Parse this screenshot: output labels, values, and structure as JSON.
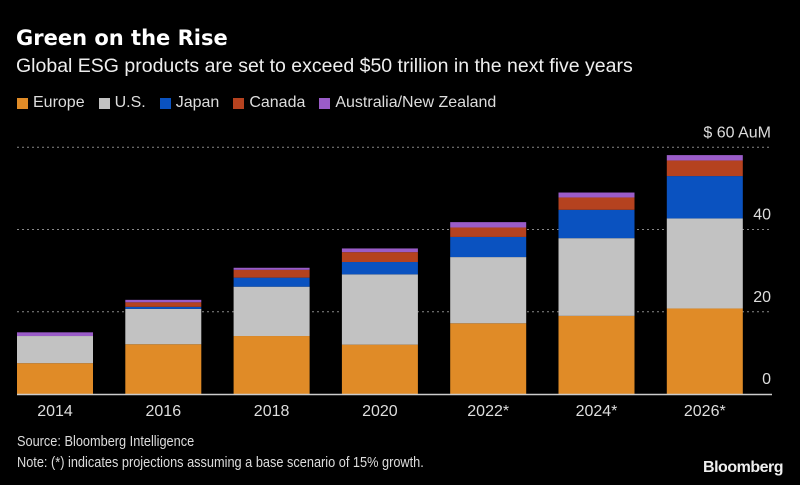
{
  "title": "Green on the Rise",
  "subtitle": "Global ESG products are set to exceed $50 trillion in the next five years",
  "source": "Source: Bloomberg Intelligence",
  "note": "Note: (*) indicates projections assuming a base scenario of 15% growth.",
  "logo": "Bloomberg",
  "chart_data": {
    "type": "bar",
    "stacked": true,
    "categories": [
      "2014",
      "2016",
      "2018",
      "2020",
      "2022*",
      "2024*",
      "2026*"
    ],
    "series": [
      {
        "name": "Europe",
        "color": "#e08b27",
        "values": [
          7.5,
          12.1,
          14.1,
          12.0,
          17.2,
          19.0,
          20.8
        ]
      },
      {
        "name": "U.S.",
        "color": "#c2c2c2",
        "values": [
          6.6,
          8.6,
          12.0,
          17.1,
          16.1,
          18.9,
          21.9
        ]
      },
      {
        "name": "Japan",
        "color": "#0a52c0",
        "values": [
          0,
          0.5,
          2.2,
          3.0,
          4.9,
          6.9,
          10.3
        ]
      },
      {
        "name": "Canada",
        "color": "#b5421f",
        "values": [
          0,
          1.1,
          1.9,
          2.4,
          2.3,
          3.0,
          3.8
        ]
      },
      {
        "name": "Australia/New Zealand",
        "color": "#9a5cc8",
        "values": [
          0.9,
          0.6,
          0.5,
          0.9,
          1.3,
          1.2,
          1.3
        ]
      }
    ],
    "ylim": [
      0,
      60
    ],
    "yticks": [
      0,
      20,
      40,
      60
    ],
    "ytick_labels": [
      "0",
      "20",
      "40",
      "$ 60 AuM"
    ],
    "y_axis_position": "right",
    "grid": true,
    "legend": "top-left",
    "xlabel": "",
    "ylabel": ""
  }
}
